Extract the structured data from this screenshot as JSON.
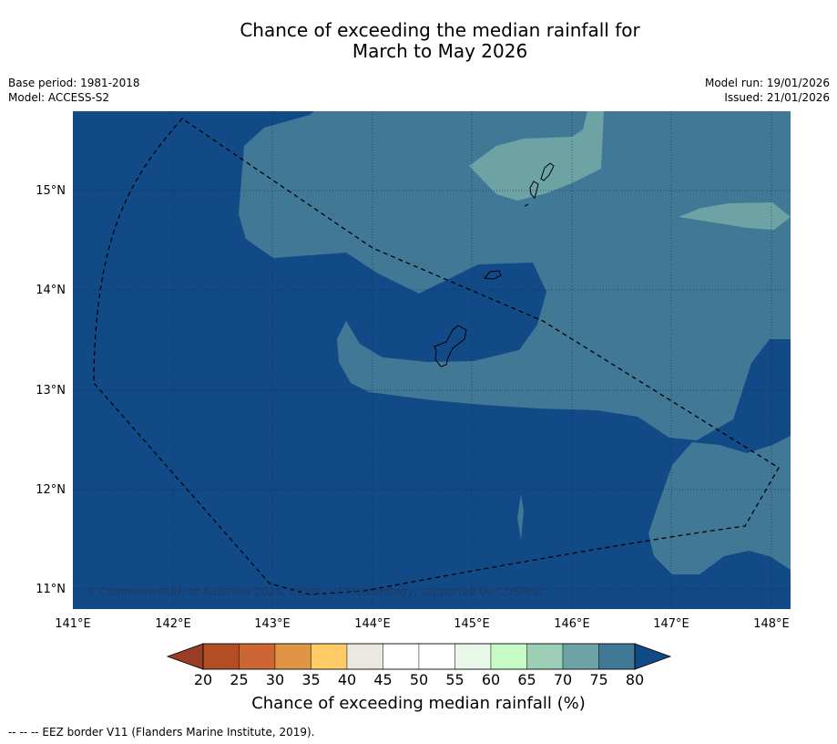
{
  "title": {
    "line1": "Chance of exceeding the median rainfall for",
    "line2": "March to May 2026"
  },
  "meta": {
    "base_period": "Base period: 1981-2018",
    "model": "Model: ACCESS-S2",
    "model_run": "Model run: 19/01/2026",
    "issued": "Issued: 21/01/2026"
  },
  "map": {
    "lon_labels": [
      "141°E",
      "142°E",
      "143°E",
      "144°E",
      "145°E",
      "146°E",
      "147°E",
      "148°E"
    ],
    "lat_labels": [
      "15°N",
      "14°N",
      "13°N",
      "12°N",
      "11°N"
    ],
    "copyright": "© Commonwealth of Australia 2026, Bureau of Meteorology, supported by COSPPac"
  },
  "colorbar": {
    "ticks": [
      "20",
      "25",
      "30",
      "35",
      "40",
      "45",
      "50",
      "55",
      "60",
      "65",
      "70",
      "75",
      "80"
    ],
    "colors": [
      "#b34d26",
      "#cc6633",
      "#e09545",
      "#fdcc66",
      "#ece7e1",
      "#ffffff",
      "#ffffff",
      "#e8f7e8",
      "#c8fac8",
      "#9dcfb6",
      "#6ea3a6",
      "#417895"
    ],
    "under_color": "#993d26",
    "over_color": "#124a88",
    "label": "Chance of exceeding median rainfall (%)"
  },
  "palette": {
    "dark_blue": "#124a88",
    "mid_blue": "#417895",
    "teal": "#6ea3a6"
  },
  "footnote": "--  --  -- EEZ border V11 (Flanders Marine Institute, 2019)."
}
